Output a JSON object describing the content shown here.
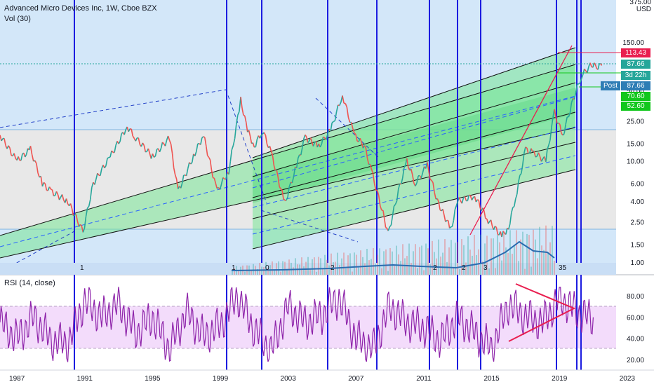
{
  "header": {
    "title": "Advanced Micro Devices Inc, 1W, Cboe BZX",
    "volume_label": "Vol (30)",
    "rsi_label": "RSI (14, close)"
  },
  "price_axis": {
    "currency": "USD",
    "top_value": "375.00",
    "ticks": [
      "150.00",
      "50.00",
      "25.00",
      "15.00",
      "10.00",
      "6.00",
      "4.00",
      "2.50",
      "1.50",
      "1.00"
    ]
  },
  "price_tags": [
    {
      "label": "113.43",
      "color": "#e91e4f"
    },
    {
      "label": "87.66",
      "color": "#26a69a"
    },
    {
      "label": "3d 22h",
      "color": "#26a69a"
    },
    {
      "label": "87.66",
      "color": "#2e7db5"
    },
    {
      "label": "70.60",
      "color": "#11c71c"
    },
    {
      "label": "52.60",
      "color": "#11c71c"
    }
  ],
  "post_label": "Post",
  "rsi_axis": {
    "ticks": [
      "80.00",
      "60.00",
      "40.00",
      "20.00"
    ],
    "band": [
      30,
      70
    ]
  },
  "time_axis": {
    "labels": [
      "1987",
      "1991",
      "1995",
      "1999",
      "2003",
      "2007",
      "2011",
      "2015",
      "2019",
      "2023"
    ]
  },
  "cycle_labels": [
    "1",
    "1",
    "0",
    "2",
    "2",
    "2",
    "3",
    "35"
  ],
  "chart_data": [
    {
      "type": "line",
      "title": "Advanced Micro Devices Inc, 1W, Cboe BZX",
      "xlabel": "",
      "ylabel": "USD",
      "scale": "log",
      "x_range": [
        1986,
        2024
      ],
      "ylim": [
        0.8,
        375
      ],
      "series": [
        {
          "x": [
            1986,
            1987,
            1987.8,
            1988.5,
            1989,
            1990,
            1990.9,
            1991.5,
            1992.5,
            1993.5,
            1994,
            1995,
            1996,
            1996.5,
            1997.5,
            1998,
            1998.8,
            1999.5,
            2000.2,
            2000.6,
            2001,
            2001.5,
            2002,
            2002.8,
            2003.5,
            2004,
            2004.8,
            2005.5,
            2006.2,
            2006.9,
            2007.5,
            2008,
            2008.6,
            2008.9,
            2009.5,
            2010,
            2010.5,
            2011.2,
            2011.8,
            2012.6,
            2013,
            2014,
            2014.8,
            2015.6,
            2016,
            2016.5,
            2017,
            2017.5,
            2018.2,
            2018.7,
            2019.2,
            2019.8,
            2020.3,
            2020.9,
            2021.2,
            2021.5
          ],
          "values": [
            18,
            10,
            13,
            6,
            5,
            4,
            2,
            6,
            11,
            22,
            17,
            11,
            17,
            5,
            12,
            18,
            5,
            8,
            40,
            20,
            14,
            20,
            12,
            3.8,
            9,
            17,
            14,
            20,
            45,
            18,
            14,
            7,
            3,
            1.9,
            5,
            10,
            6,
            9,
            4,
            2.1,
            4,
            4.5,
            2.6,
            1.8,
            2.2,
            5,
            13,
            12,
            10,
            30,
            18,
            40,
            70,
            90,
            85,
            88
          ]
        }
      ]
    },
    {
      "type": "line",
      "title": "RSI (14, close)",
      "xlabel": "",
      "ylabel": "",
      "x_range": [
        1986,
        2024
      ],
      "ylim": [
        15,
        90
      ],
      "series": [
        {
          "x": [
            1986,
            1987,
            1988,
            1989,
            1990,
            1991,
            1992,
            1993,
            1994,
            1995,
            1996,
            1997,
            1998,
            1999,
            2000,
            2001,
            2002,
            2003,
            2004,
            2005,
            2006,
            2007,
            2008,
            2009,
            2010,
            2011,
            2012,
            2013,
            2014,
            2015,
            2016,
            2017,
            2018,
            2019,
            2020,
            2021
          ],
          "values": [
            55,
            40,
            60,
            38,
            35,
            75,
            60,
            72,
            45,
            60,
            30,
            65,
            42,
            52,
            80,
            48,
            28,
            70,
            55,
            62,
            78,
            40,
            30,
            70,
            55,
            50,
            38,
            60,
            45,
            30,
            72,
            60,
            55,
            78,
            65,
            58
          ]
        }
      ]
    }
  ]
}
